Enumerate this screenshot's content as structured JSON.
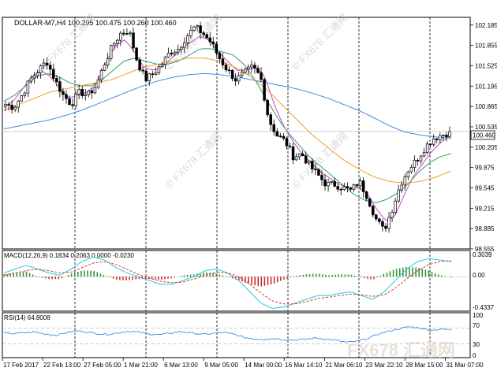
{
  "colors": {
    "background": "#ffffff",
    "frame": "#000000",
    "candle": "#000000",
    "ma_fast": "#cc44cc",
    "ma_mid": "#2e9e6b",
    "ma_slow": "#f39c2b",
    "ma_long": "#3a8ee6",
    "macd_pos": "#2e8b2e",
    "macd_neg": "#cc2222",
    "macd_line": "#22cce0",
    "signal_line": "#dd3333",
    "rsi_line": "#3a8ee6",
    "bid_label_bg": "#ffffff",
    "watermark": "#c8c8c8"
  },
  "main": {
    "header": "DOLLAR-M7,H4  100.295 100.475 100.260 100.460",
    "bid_label": "100.460",
    "watermarks": [
      "FX678 汇通网",
      "FX678 汇通网",
      "FX678 汇通网",
      "FX678 汇通网",
      "FX678 汇通网"
    ]
  },
  "macd_panel": {
    "header": "MACD(12,26,9) 0.1834 0.2063 0.0000 -0.0230",
    "ticks": [
      "0.3039",
      "0.00",
      "-0.4337"
    ]
  },
  "rsi_panel": {
    "header": "RSI(14) 64.8008",
    "ticks": [
      "100",
      "70",
      "30",
      "0"
    ]
  },
  "footer_watermark": "FX678 汇通网",
  "chart_data": [
    {
      "type": "candlestick",
      "title": "DOLLAR-M7,H4",
      "ylim": [
        98.555,
        102.31
      ],
      "y_ticks": [
        102.185,
        101.855,
        101.525,
        101.195,
        100.865,
        100.535,
        100.205,
        99.875,
        99.545,
        99.215,
        98.885,
        98.555
      ],
      "x_tick_labels": [
        "17 Feb 2017",
        "22 Feb 13:00",
        "27 Feb 05:00",
        "1 Mar 21:00",
        "6 Mar 13:00",
        "9 Mar 05:00",
        "14 Mar 00:00",
        "16 Mar 14:10",
        "21 Mar 06:10",
        "23 Mar 22:10",
        "28 Mar 15:00",
        "31 Mar 07:00"
      ],
      "last_price": 100.46,
      "close_profile": [
        100.9,
        100.85,
        101.05,
        101.3,
        101.45,
        101.6,
        101.3,
        101.05,
        100.9,
        101.1,
        101.05,
        101.2,
        101.55,
        101.85,
        102.05,
        102.1,
        101.6,
        101.3,
        101.4,
        101.55,
        101.75,
        101.8,
        102.0,
        102.15,
        102.05,
        101.9,
        101.65,
        101.45,
        101.3,
        101.4,
        101.5,
        101.35,
        100.65,
        100.4,
        100.3,
        100.05,
        100.1,
        99.9,
        99.75,
        99.6,
        99.6,
        99.55,
        99.5,
        99.65,
        99.4,
        99.05,
        98.85,
        99.2,
        99.6,
        99.85,
        100.0,
        100.2,
        100.35,
        100.4,
        100.45
      ],
      "indicators": [
        {
          "name": "ma_fast",
          "profile": [
            100.85,
            100.95,
            101.15,
            101.35,
            101.45,
            101.35,
            101.15,
            101.0,
            101.05,
            101.1,
            101.25,
            101.6,
            101.85,
            101.95,
            101.75,
            101.5,
            101.45,
            101.5,
            101.65,
            101.8,
            101.9,
            102.0,
            101.95,
            101.75,
            101.6,
            101.45,
            101.45,
            101.5,
            101.35,
            100.9,
            100.55,
            100.3,
            100.1,
            99.95,
            99.8,
            99.7,
            99.6,
            99.55,
            99.55,
            99.45,
            99.2,
            99.0,
            99.1,
            99.45,
            99.75,
            99.95,
            100.15,
            100.3,
            100.4
          ]
        },
        {
          "name": "ma_mid",
          "profile": [
            100.95,
            101.05,
            101.2,
            101.35,
            101.4,
            101.35,
            101.25,
            101.2,
            101.2,
            101.3,
            101.45,
            101.6,
            101.65,
            101.6,
            101.55,
            101.55,
            101.6,
            101.7,
            101.8,
            101.8,
            101.75,
            101.7,
            101.55,
            101.3,
            101.0,
            100.7,
            100.45,
            100.25,
            100.05,
            99.9,
            99.75,
            99.6,
            99.45,
            99.35,
            99.3,
            99.35,
            99.45,
            99.6,
            99.8,
            99.95,
            100.05,
            100.1
          ]
        },
        {
          "name": "ma_slow",
          "profile": [
            100.8,
            100.9,
            101.0,
            101.1,
            101.15,
            101.2,
            101.25,
            101.3,
            101.4,
            101.5,
            101.55,
            101.6,
            101.65,
            101.65,
            101.6,
            101.5,
            101.35,
            101.15,
            100.9,
            100.65,
            100.4,
            100.2,
            100.0,
            99.85,
            99.72,
            99.65,
            99.62,
            99.65,
            99.72,
            99.82
          ]
        },
        {
          "name": "ma_long",
          "profile": [
            100.5,
            100.55,
            100.6,
            100.65,
            100.72,
            100.8,
            100.9,
            101.0,
            101.1,
            101.2,
            101.28,
            101.34,
            101.38,
            101.4,
            101.38,
            101.35,
            101.3,
            101.25,
            101.2,
            101.15,
            101.08,
            101.0,
            100.9,
            100.8,
            100.68,
            100.55,
            100.45,
            100.4,
            100.37,
            100.35
          ]
        }
      ]
    },
    {
      "type": "histogram",
      "title": "MACD(12,26,9)",
      "ylim": [
        -0.4337,
        0.3039
      ],
      "macd_profile": [
        0.05,
        0.1,
        0.15,
        0.1,
        0.05,
        0.02,
        0.1,
        0.2,
        0.26,
        0.22,
        0.12,
        0.05,
        0.0,
        -0.05,
        -0.1,
        -0.1,
        -0.05,
        0.0,
        0.08,
        0.1,
        0.05,
        -0.05,
        -0.2,
        -0.35,
        -0.42,
        -0.4,
        -0.35,
        -0.3,
        -0.25,
        -0.25,
        -0.22,
        -0.2,
        -0.25,
        -0.3,
        -0.2,
        -0.05,
        0.1,
        0.2,
        0.24,
        0.22,
        0.2
      ],
      "signal_profile": [
        0.02,
        0.05,
        0.08,
        0.1,
        0.08,
        0.05,
        0.06,
        0.12,
        0.18,
        0.2,
        0.16,
        0.1,
        0.03,
        -0.02,
        -0.06,
        -0.08,
        -0.07,
        -0.03,
        0.02,
        0.06,
        0.05,
        0.0,
        -0.1,
        -0.22,
        -0.32,
        -0.36,
        -0.36,
        -0.33,
        -0.29,
        -0.27,
        -0.25,
        -0.23,
        -0.24,
        -0.26,
        -0.24,
        -0.15,
        -0.03,
        0.08,
        0.16,
        0.2,
        0.21
      ],
      "histogram_profile": [
        0.03,
        0.05,
        0.07,
        0.0,
        -0.03,
        -0.03,
        0.04,
        0.08,
        0.08,
        0.02,
        -0.04,
        -0.05,
        -0.03,
        -0.03,
        -0.04,
        -0.02,
        0.02,
        0.03,
        0.06,
        0.04,
        0.0,
        -0.05,
        -0.1,
        -0.13,
        -0.1,
        -0.04,
        0.01,
        0.03,
        0.04,
        0.02,
        0.03,
        0.03,
        -0.01,
        -0.04,
        0.04,
        0.1,
        0.13,
        0.12,
        0.08,
        0.02,
        -0.01
      ],
      "current": {
        "macd": 0.1834,
        "signal": 0.2063,
        "histogram": -0.023
      }
    },
    {
      "type": "line",
      "title": "RSI(14)",
      "ylim": [
        0,
        100
      ],
      "levels": [
        70,
        30
      ],
      "profile": [
        57,
        56,
        58,
        60,
        55,
        52,
        58,
        63,
        60,
        56,
        54,
        58,
        62,
        59,
        55,
        53,
        57,
        61,
        58,
        54,
        56,
        59,
        55,
        47,
        43,
        42,
        44,
        41,
        40,
        42,
        45,
        42,
        39,
        34,
        37,
        44,
        55,
        62,
        68,
        73,
        70,
        64,
        67,
        65
      ],
      "current": 64.8008
    }
  ]
}
